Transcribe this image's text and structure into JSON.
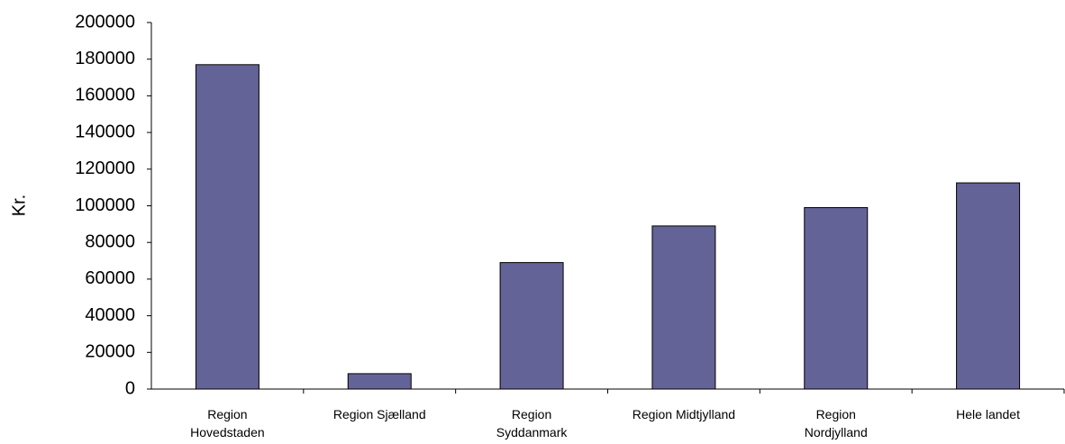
{
  "chart_data": {
    "type": "bar",
    "y_label": "Kr.",
    "categories": [
      "Region Hovedstaden",
      "Region Sjælland",
      "Region Syddanmark",
      "Region Midtjylland",
      "Region Nordjylland",
      "Hele landet"
    ],
    "values": [
      177000,
      8400,
      69000,
      89000,
      99000,
      112500
    ],
    "color": "#636397",
    "ylim": [
      0,
      200000
    ],
    "yticks": [
      0,
      20000,
      40000,
      60000,
      80000,
      100000,
      120000,
      140000,
      160000,
      180000,
      200000
    ],
    "grid": false
  }
}
